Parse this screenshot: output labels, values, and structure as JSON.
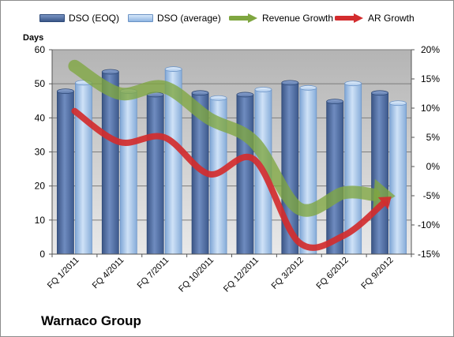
{
  "chart_data": {
    "type": "bar",
    "title": "",
    "company": "Warnaco Group",
    "ylabel": "Days",
    "y2label": "",
    "ylim": [
      0,
      60
    ],
    "y2lim": [
      -15,
      20
    ],
    "yticks": [
      "0",
      "10",
      "20",
      "30",
      "40",
      "50",
      "60"
    ],
    "y2ticks": [
      "-15%",
      "-10%",
      "-5%",
      "0%",
      "5%",
      "10%",
      "15%",
      "20%"
    ],
    "categories": [
      "FQ 1/2011",
      "FQ 4/2011",
      "FQ 7/2011",
      "FQ 10/2011",
      "FQ 12/2011",
      "FQ 3/2012",
      "FQ 6/2012",
      "FQ 9/2012"
    ],
    "grid": true,
    "legend_position": "top",
    "series": [
      {
        "name": "DSO (EOQ)",
        "kind": "bar",
        "axis": "left",
        "color": "#4f6fa5",
        "values": [
          48.5,
          54.2,
          47.5,
          48,
          47.5,
          51,
          45.5,
          48
        ]
      },
      {
        "name": "DSO (average)",
        "kind": "bar",
        "axis": "left",
        "color": "#a9c9ee",
        "values": [
          51,
          48.5,
          55,
          46.5,
          49,
          49.5,
          50.8,
          45
        ]
      },
      {
        "name": "Revenue Growth",
        "kind": "line-arrow",
        "axis": "right",
        "color": "#7fa640",
        "values": [
          17.2,
          12.5,
          13.6,
          8.2,
          4.2,
          -7.2,
          -4.5,
          -5.0
        ]
      },
      {
        "name": "AR Growth",
        "kind": "line-arrow",
        "axis": "right",
        "color": "#d32c2e",
        "values": [
          9.5,
          4.2,
          5.0,
          -1.3,
          1.2,
          -13.0,
          -11.8,
          -5.5
        ]
      }
    ]
  }
}
